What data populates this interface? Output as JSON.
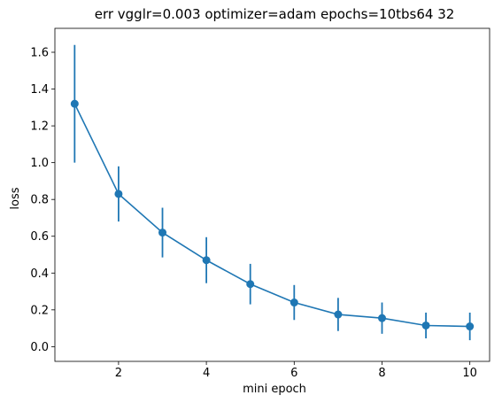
{
  "chart_data": {
    "type": "line",
    "title": "err vgglr=0.003 optimizer=adam epochs=10tbs64 32",
    "xlabel": "mini epoch",
    "ylabel": "loss",
    "xlim": [
      0.55,
      10.45
    ],
    "ylim": [
      -0.08,
      1.73
    ],
    "x_ticks": [
      2,
      4,
      6,
      8,
      10
    ],
    "y_ticks": [
      0.0,
      0.2,
      0.4,
      0.6,
      0.8,
      1.0,
      1.2,
      1.4,
      1.6
    ],
    "x_tick_labels": [
      "2",
      "4",
      "6",
      "8",
      "10"
    ],
    "y_tick_labels": [
      "0.0",
      "0.2",
      "0.4",
      "0.6",
      "0.8",
      "1.0",
      "1.2",
      "1.4",
      "1.6"
    ],
    "grid": false,
    "color": "#1f77b4",
    "series": [
      {
        "x": [
          1,
          2,
          3,
          4,
          5,
          6,
          7,
          8,
          9,
          10
        ],
        "y": [
          1.32,
          0.83,
          0.62,
          0.47,
          0.34,
          0.24,
          0.175,
          0.155,
          0.115,
          0.11
        ],
        "yerr": [
          0.32,
          0.15,
          0.135,
          0.125,
          0.11,
          0.095,
          0.09,
          0.085,
          0.07,
          0.075
        ]
      }
    ]
  }
}
